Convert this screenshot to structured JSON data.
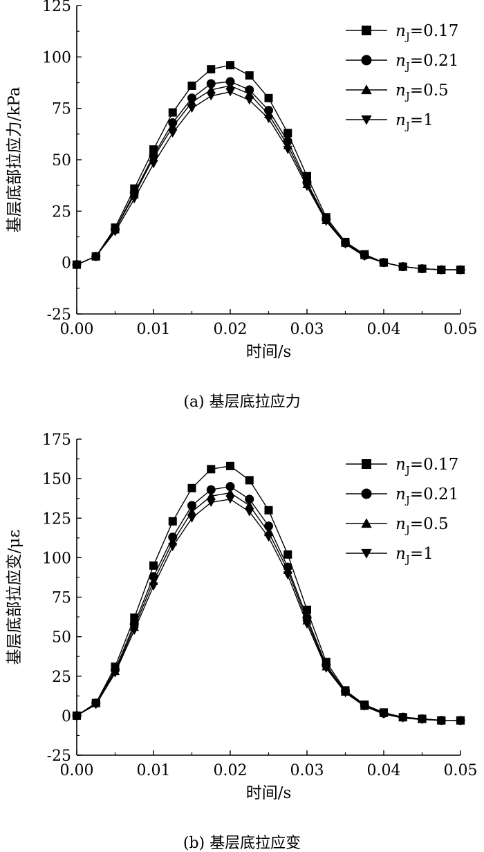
{
  "chart_data": [
    {
      "type": "line",
      "caption": "(a) 基层底拉应力",
      "xlabel": "时间/s",
      "ylabel": "基层底部拉应力/kPa",
      "xlim": [
        0,
        0.05
      ],
      "ylim": [
        -25,
        125
      ],
      "xticks": [
        "0.00",
        "0.01",
        "0.02",
        "0.03",
        "0.04",
        "0.05"
      ],
      "yticks": [
        "-25",
        "0",
        "25",
        "50",
        "75",
        "100",
        "125"
      ],
      "legend_position": "top-right",
      "x": [
        0,
        0.0025,
        0.005,
        0.0075,
        0.01,
        0.0125,
        0.015,
        0.0175,
        0.02,
        0.0225,
        0.025,
        0.0275,
        0.03,
        0.0325,
        0.035,
        0.0375,
        0.04,
        0.0425,
        0.045,
        0.0475,
        0.05
      ],
      "series": [
        {
          "name_symbol": "n",
          "name_sub": "J",
          "name_value": "=0.17",
          "marker": "square",
          "values": [
            -1,
            3,
            17,
            36,
            55,
            73,
            86,
            94,
            96,
            91,
            80,
            63,
            42,
            22,
            10,
            4,
            0,
            -2,
            -3,
            -3.5,
            -3.5
          ]
        },
        {
          "name_symbol": "n",
          "name_sub": "J",
          "name_value": "=0.21",
          "marker": "circle",
          "values": [
            -1,
            3,
            16,
            34,
            52,
            68,
            80,
            87,
            88,
            84,
            74,
            59,
            39,
            21,
            9.5,
            3.5,
            0,
            -2,
            -3,
            -3.5,
            -3.5
          ]
        },
        {
          "name_symbol": "n",
          "name_sub": "J",
          "name_value": "=0.5",
          "marker": "triangle-up",
          "values": [
            -1,
            3,
            16,
            33,
            51,
            66,
            78,
            84,
            86,
            82,
            72,
            57,
            38,
            20.5,
            9.5,
            3.5,
            0,
            -2,
            -3,
            -3.5,
            -3.5
          ]
        },
        {
          "name_symbol": "n",
          "name_sub": "J",
          "name_value": "=1",
          "marker": "triangle-down",
          "values": [
            -1,
            3,
            15,
            31,
            48,
            63,
            75,
            81,
            83,
            79,
            70,
            55,
            37,
            20,
            9,
            3,
            0,
            -2,
            -3,
            -3.5,
            -3.5
          ]
        }
      ]
    },
    {
      "type": "line",
      "caption": "(b) 基层底拉应变",
      "xlabel": "时间/s",
      "ylabel": "基层底部拉应变/με",
      "xlim": [
        0,
        0.05
      ],
      "ylim": [
        -25,
        175
      ],
      "xticks": [
        "0.00",
        "0.01",
        "0.02",
        "0.03",
        "0.04",
        "0.05"
      ],
      "yticks": [
        "-25",
        "0",
        "25",
        "50",
        "75",
        "100",
        "125",
        "150",
        "175"
      ],
      "legend_position": "top-right",
      "x": [
        0,
        0.0025,
        0.005,
        0.0075,
        0.01,
        0.0125,
        0.015,
        0.0175,
        0.02,
        0.0225,
        0.025,
        0.0275,
        0.03,
        0.0325,
        0.035,
        0.0375,
        0.04,
        0.0425,
        0.045,
        0.0475,
        0.05
      ],
      "series": [
        {
          "name_symbol": "n",
          "name_sub": "J",
          "name_value": "=0.17",
          "marker": "square",
          "values": [
            0,
            8,
            31,
            62,
            95,
            123,
            144,
            156,
            158,
            149,
            130,
            102,
            67,
            34,
            16,
            7,
            2,
            -1,
            -2,
            -3,
            -3
          ]
        },
        {
          "name_symbol": "n",
          "name_sub": "J",
          "name_value": "=0.21",
          "marker": "circle",
          "values": [
            0,
            8,
            29,
            58,
            88,
            113,
            133,
            143,
            145,
            137,
            120,
            94,
            62,
            32,
            15.5,
            6.5,
            1.5,
            -1,
            -2,
            -3,
            -3
          ]
        },
        {
          "name_symbol": "n",
          "name_sub": "J",
          "name_value": "=0.5",
          "marker": "triangle-up",
          "values": [
            0,
            8,
            28,
            56,
            85,
            110,
            129,
            139,
            141,
            133,
            116,
            92,
            60,
            31,
            15,
            6,
            1.5,
            -1,
            -2,
            -3,
            -3
          ]
        },
        {
          "name_symbol": "n",
          "name_sub": "J",
          "name_value": "=1",
          "marker": "triangle-down",
          "values": [
            0,
            7,
            27,
            54,
            82,
            107,
            125,
            135,
            137,
            129,
            113,
            89,
            58,
            30,
            14.5,
            6,
            1,
            -1.5,
            -2.5,
            -3,
            -3
          ]
        }
      ]
    }
  ]
}
